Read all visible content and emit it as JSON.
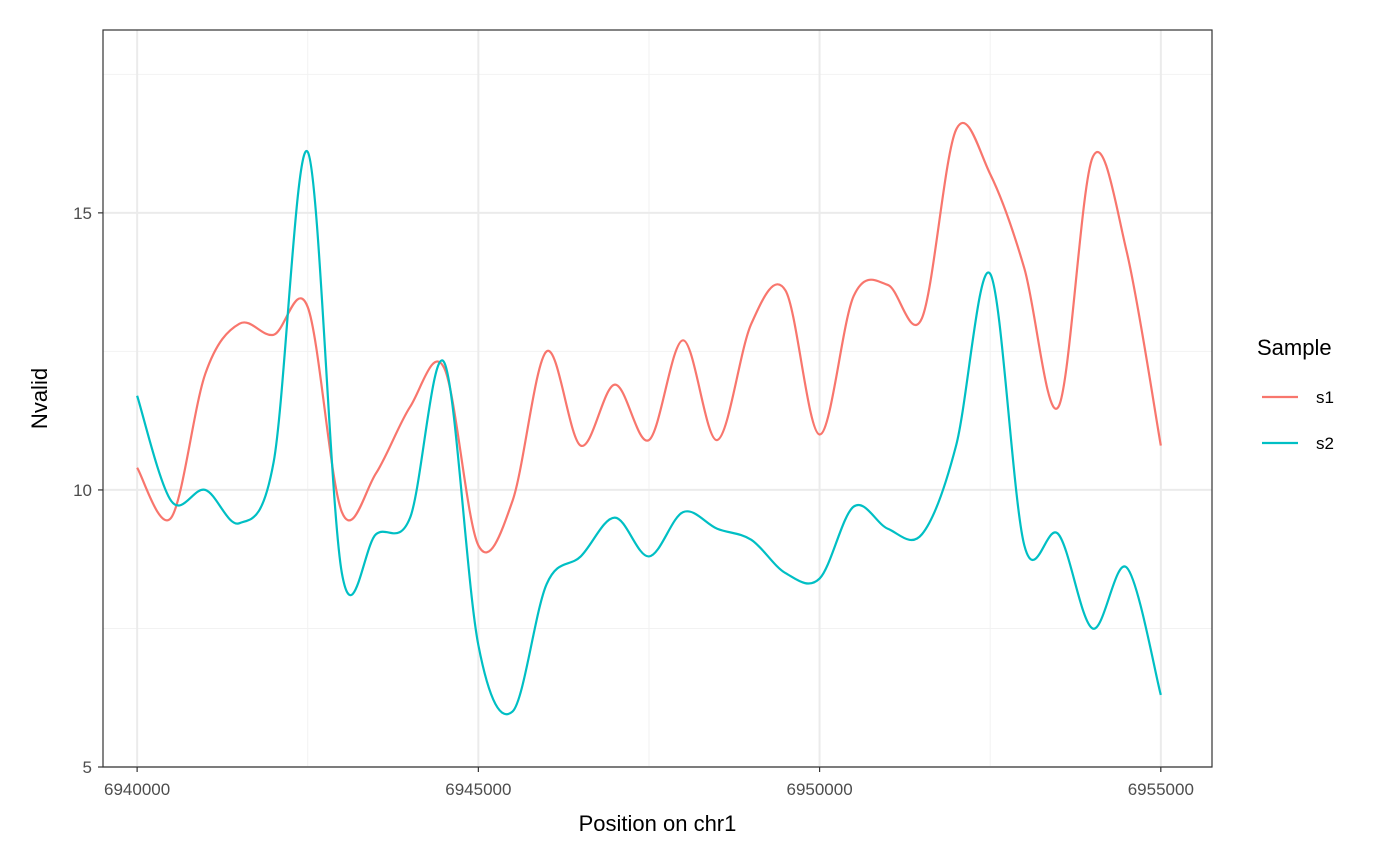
{
  "chart_data": {
    "type": "line",
    "xlabel": "Position on chr1",
    "ylabel": "Nvalid",
    "xlim": [
      6939500,
      6955750
    ],
    "ylim": [
      5,
      18.3
    ],
    "x_ticks": [
      6940000,
      6945000,
      6950000,
      6955000
    ],
    "x_tick_labels": [
      "6940000",
      "6945000",
      "6950000",
      "6955000"
    ],
    "y_ticks": [
      5,
      10,
      15
    ],
    "y_tick_labels": [
      "5",
      "10",
      "15"
    ],
    "grid": true,
    "legend": {
      "title": "Sample",
      "position": "right"
    },
    "x": [
      6940000,
      6940500,
      6941000,
      6941500,
      6942000,
      6942500,
      6943000,
      6943500,
      6944000,
      6944500,
      6945000,
      6945500,
      6946000,
      6946500,
      6947000,
      6947500,
      6948000,
      6948500,
      6949000,
      6949500,
      6950000,
      6950500,
      6951000,
      6951500,
      6952000,
      6952500,
      6953000,
      6953500,
      6954000,
      6954500,
      6955000
    ],
    "series": [
      {
        "name": "s1",
        "color": "#F8766D",
        "values": [
          10.4,
          9.5,
          12.1,
          13.0,
          12.8,
          13.3,
          9.6,
          10.3,
          11.5,
          12.2,
          9.0,
          9.8,
          12.5,
          10.8,
          11.9,
          10.9,
          12.7,
          10.9,
          13.0,
          13.6,
          11.0,
          13.5,
          13.7,
          13.1,
          16.5,
          15.7,
          14.0,
          11.5,
          16.0,
          14.3,
          10.8
        ]
      },
      {
        "name": "s2",
        "color": "#00BFC4",
        "values": [
          11.7,
          9.8,
          10.0,
          9.4,
          10.5,
          16.1,
          8.5,
          9.2,
          9.5,
          12.3,
          7.2,
          6.0,
          8.3,
          8.8,
          9.5,
          8.8,
          9.6,
          9.3,
          9.1,
          8.5,
          8.4,
          9.7,
          9.3,
          9.2,
          10.8,
          13.9,
          9.0,
          9.2,
          7.5,
          8.6,
          6.3
        ]
      }
    ]
  }
}
